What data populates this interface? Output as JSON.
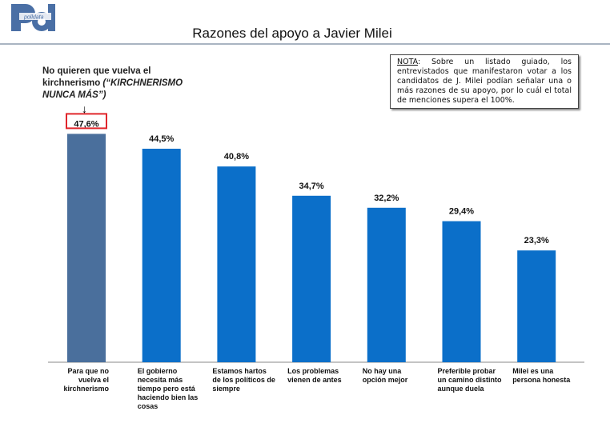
{
  "logo": {
    "text": "polldata",
    "color": "#4a6fa5"
  },
  "header": {
    "title": "Razones del apoyo a Javier Milei"
  },
  "annotation": {
    "main": "No quieren que vuelva el kirchnerismo ",
    "quote": "(“KIRCHNERISMO NUNCA MÁS”)",
    "highlight_color": "#e0252b"
  },
  "note": {
    "label": "NOTA",
    "text": ": Sobre un listado guiado, los entrevistados que manifestaron votar a los candidatos de J. Milei podían señalar una o más razones de su apoyo, por lo cuál el total de menciones supera el 100%."
  },
  "chart_data": {
    "type": "bar",
    "title": "Razones del apoyo a Javier Milei",
    "categories": [
      "Para que no vuelva el kirchnerismo",
      "El gobierno necesita más tiempo pero está haciendo bien las cosas",
      "Estamos hartos de los políticos de siempre",
      "Los problemas vienen de antes",
      "No hay una opción mejor",
      "Preferible probar un camino distinto aunque duela",
      "Milei es una persona honesta"
    ],
    "values": [
      47.6,
      44.5,
      40.8,
      34.7,
      32.2,
      29.4,
      23.3
    ],
    "labels": [
      "47,6%",
      "44,5%",
      "40,8%",
      "34,7%",
      "32,2%",
      "29,4%",
      "23,3%"
    ],
    "colors": [
      "#4a6f9c",
      "#0b6fc9",
      "#0b6fc9",
      "#0b6fc9",
      "#0b6fc9",
      "#0b6fc9",
      "#0b6fc9"
    ],
    "ylim": [
      0,
      50
    ],
    "grid": false,
    "legend": "none"
  }
}
